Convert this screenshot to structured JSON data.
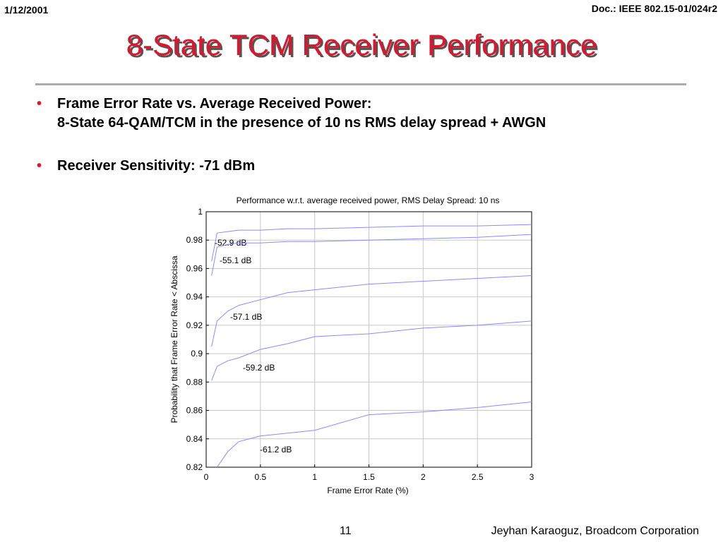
{
  "header": {
    "date": "1/12/2001",
    "doc": "Doc.: IEEE 802.15-01/024r2",
    "title": "8-State TCM Receiver Performance"
  },
  "bullets": [
    {
      "lines": [
        "Frame Error Rate vs. Average Received Power:",
        "8-State 64-QAM/TCM in the presence of 10 ns RMS delay spread + AWGN"
      ]
    },
    {
      "lines": [
        "Receiver Sensitivity: -71 dBm"
      ]
    }
  ],
  "chart_data": {
    "type": "line",
    "title": "Performance w.r.t. average received power, RMS Delay Spread: 10 ns",
    "xlabel": "Frame Error Rate (%)",
    "ylabel": "Probability that Frame Error Rate < Abscissa",
    "x": [
      0.05,
      0.1,
      0.2,
      0.3,
      0.5,
      0.75,
      1,
      1.5,
      2,
      2.5,
      3
    ],
    "series": [
      {
        "name": "-52.9 dB",
        "color": "#8a8aff",
        "values": [
          0.965,
          0.985,
          0.986,
          0.987,
          0.987,
          0.988,
          0.988,
          0.989,
          0.99,
          0.99,
          0.991
        ]
      },
      {
        "name": "-55.1 dB",
        "color": "#8a8aff",
        "values": [
          0.955,
          0.975,
          0.977,
          0.978,
          0.978,
          0.979,
          0.979,
          0.98,
          0.981,
          0.982,
          0.984
        ]
      },
      {
        "name": "-57.1 dB",
        "color": "#8a8aff",
        "values": [
          0.905,
          0.923,
          0.93,
          0.934,
          0.938,
          0.943,
          0.945,
          0.949,
          0.951,
          0.953,
          0.955
        ]
      },
      {
        "name": "-59.2 dB",
        "color": "#8a8aff",
        "values": [
          0.881,
          0.891,
          0.895,
          0.897,
          0.903,
          0.907,
          0.912,
          0.914,
          0.918,
          0.92,
          0.923
        ]
      },
      {
        "name": "-61.2 dB",
        "color": "#8a8aff",
        "values": [
          null,
          0.82,
          0.831,
          0.838,
          0.842,
          0.844,
          0.846,
          0.857,
          0.859,
          0.862,
          0.866
        ]
      }
    ],
    "xlim": [
      0,
      3
    ],
    "xticks": [
      0,
      0.5,
      1,
      1.5,
      2,
      2.5,
      3
    ],
    "ylim": [
      0.82,
      1
    ],
    "yticks": [
      0.82,
      0.84,
      0.86,
      0.88,
      0.9,
      0.92,
      0.94,
      0.96,
      0.98,
      1
    ],
    "grid": true
  },
  "footer": {
    "page": "11",
    "author": "Jeyhan Karaoguz, Broadcom Corporation"
  }
}
